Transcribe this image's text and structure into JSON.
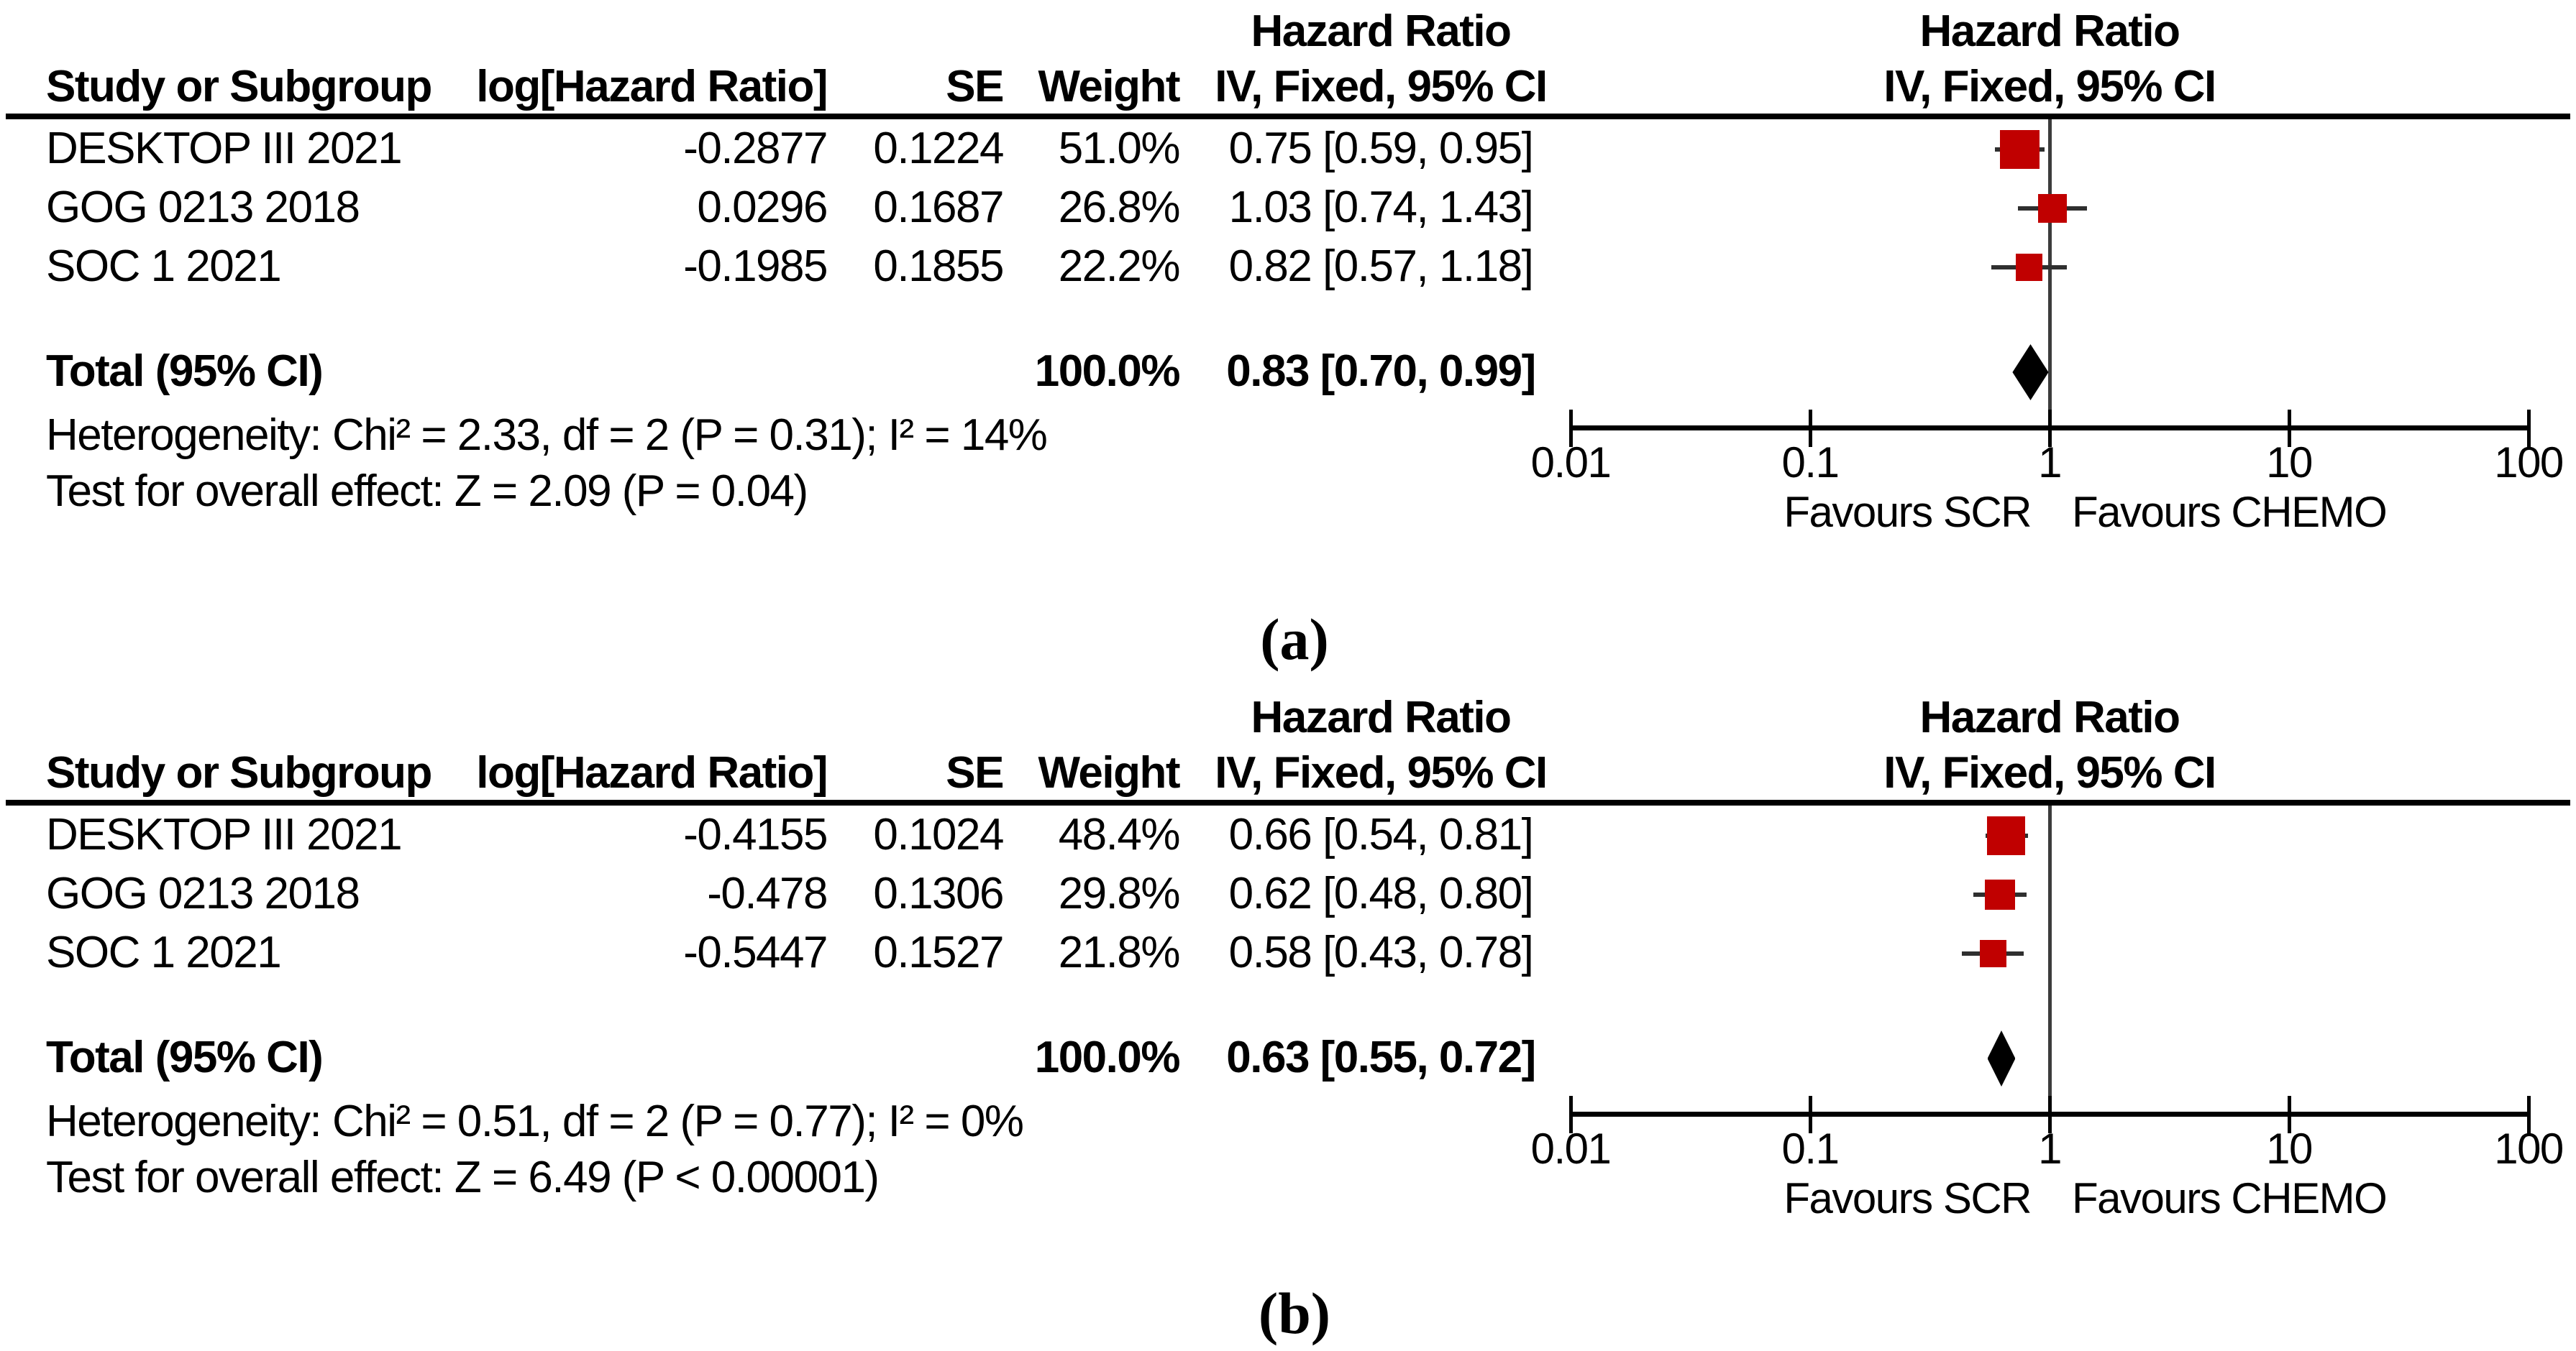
{
  "colors": {
    "marker": "#c00000",
    "diamond": "#000000",
    "ci_line": "#2f2f2f",
    "null_line": "#3c3c3c",
    "text": "#000000"
  },
  "chart_data": [
    {
      "type": "forest",
      "caption": "(a)",
      "title": "Hazard Ratio",
      "columns": {
        "study": "Study or Subgroup",
        "log_hr": "log[Hazard Ratio]",
        "se": "SE",
        "weight": "Weight",
        "ci": "IV, Fixed, 95% CI"
      },
      "x_scale": "log10",
      "xlim": [
        0.01,
        100
      ],
      "x_ticks": [
        "0.01",
        "0.1",
        "1",
        "10",
        "100"
      ],
      "studies": [
        {
          "study": "DESKTOP III 2021",
          "log_hr": "-0.2877",
          "se": "0.1224",
          "weight": "51.0%",
          "weight_pct": 51.0,
          "ci_text": "0.75 [0.59, 0.95]",
          "hr": 0.75,
          "lo": 0.59,
          "hi": 0.95
        },
        {
          "study": "GOG 0213 2018",
          "log_hr": "0.0296",
          "se": "0.1687",
          "weight": "26.8%",
          "weight_pct": 26.8,
          "ci_text": "1.03 [0.74, 1.43]",
          "hr": 1.03,
          "lo": 0.74,
          "hi": 1.43
        },
        {
          "study": "SOC 1 2021",
          "log_hr": "-0.1985",
          "se": "0.1855",
          "weight": "22.2%",
          "weight_pct": 22.2,
          "ci_text": "0.82 [0.57, 1.18]",
          "hr": 0.82,
          "lo": 0.57,
          "hi": 1.18
        }
      ],
      "total": {
        "label": "Total (95% CI)",
        "weight": "100.0%",
        "ci_text": "0.83 [0.70, 0.99]",
        "hr": 0.83,
        "lo": 0.7,
        "hi": 0.99
      },
      "heterogeneity": "Heterogeneity: Chi² = 2.33, df = 2 (P = 0.31); I² = 14%",
      "overall_effect": "Test for overall effect: Z = 2.09 (P = 0.04)",
      "favours_left": "Favours SCR",
      "favours_right": "Favours CHEMO"
    },
    {
      "type": "forest",
      "caption": "(b)",
      "title": "Hazard Ratio",
      "columns": {
        "study": "Study or Subgroup",
        "log_hr": "log[Hazard Ratio]",
        "se": "SE",
        "weight": "Weight",
        "ci": "IV, Fixed, 95% CI"
      },
      "x_scale": "log10",
      "xlim": [
        0.01,
        100
      ],
      "x_ticks": [
        "0.01",
        "0.1",
        "1",
        "10",
        "100"
      ],
      "studies": [
        {
          "study": "DESKTOP III 2021",
          "log_hr": "-0.4155",
          "se": "0.1024",
          "weight": "48.4%",
          "weight_pct": 48.4,
          "ci_text": "0.66 [0.54, 0.81]",
          "hr": 0.66,
          "lo": 0.54,
          "hi": 0.81
        },
        {
          "study": "GOG 0213 2018",
          "log_hr": "-0.478",
          "se": "0.1306",
          "weight": "29.8%",
          "weight_pct": 29.8,
          "ci_text": "0.62 [0.48, 0.80]",
          "hr": 0.62,
          "lo": 0.48,
          "hi": 0.8
        },
        {
          "study": "SOC 1 2021",
          "log_hr": "-0.5447",
          "se": "0.1527",
          "weight": "21.8%",
          "weight_pct": 21.8,
          "ci_text": "0.58 [0.43, 0.78]",
          "hr": 0.58,
          "lo": 0.43,
          "hi": 0.78
        }
      ],
      "total": {
        "label": "Total (95% CI)",
        "weight": "100.0%",
        "ci_text": "0.63 [0.55, 0.72]",
        "hr": 0.63,
        "lo": 0.55,
        "hi": 0.72
      },
      "heterogeneity": "Heterogeneity: Chi² = 0.51, df = 2 (P = 0.77); I² = 0%",
      "overall_effect": "Test for overall effect: Z = 6.49 (P < 0.00001)",
      "favours_left": "Favours SCR",
      "favours_right": "Favours CHEMO"
    }
  ]
}
